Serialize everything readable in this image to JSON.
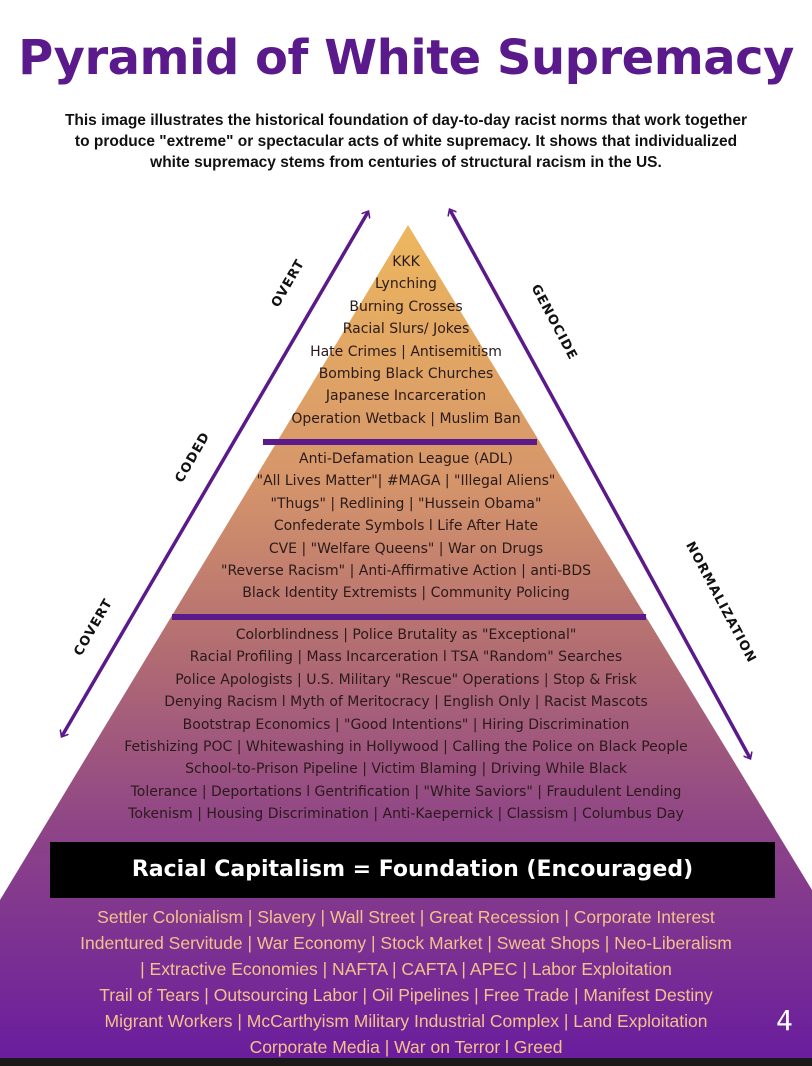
{
  "title": "Pyramid of White Supremacy",
  "subtitle": "This image illustrates the historical foundation of day-to-day racist norms that work together to produce \"extreme\" or spectacular acts of white supremacy. It shows that individualized white supremacy stems from centuries of structural racism in the US.",
  "arrows": {
    "left": [
      "OVERT",
      "CODED",
      "COVERT"
    ],
    "right": [
      "GENOCIDE",
      "NORMALIZATION"
    ]
  },
  "tiers": {
    "overt": [
      "KKK",
      "Lynching",
      "Burning Crosses",
      "Racial Slurs/ Jokes",
      "Hate Crimes | Antisemitism",
      "Bombing Black Churches",
      "Japanese Incarceration",
      "Operation Wetback | Muslim Ban"
    ],
    "coded": [
      "Anti-Defamation League (ADL)",
      "\"All Lives Matter\"| #MAGA | \"Illegal Aliens\"",
      "\"Thugs\" | Redlining | \"Hussein Obama\"",
      "Confederate Symbols l Life After Hate",
      "CVE | \"Welfare Queens\" | War on Drugs",
      "\"Reverse Racism\" | Anti-Affirmative Action | anti-BDS",
      "Black Identity Extremists | Community Policing"
    ],
    "covert": [
      "Colorblindness | Police Brutality as \"Exceptional\"",
      "Racial Profiling | Mass Incarceration l TSA \"Random\" Searches",
      "Police Apologists | U.S. Military \"Rescue\" Operations | Stop & Frisk",
      "Denying Racism l Myth of Meritocracy | English Only | Racist Mascots",
      "Bootstrap Economics | \"Good Intentions\" | Hiring Discrimination",
      "Fetishizing POC | Whitewashing in Hollywood | Calling the Police on Black People",
      "School-to-Prison Pipeline | Victim Blaming | Driving While Black",
      "Tolerance | Deportations l Gentrification | \"White Saviors\" | Fraudulent Lending",
      "Tokenism | Housing Discrimination | Anti-Kaepernick | Classism | Columbus Day"
    ]
  },
  "foundation": {
    "heading": "Racial Capitalism = Foundation (Encouraged)",
    "items": [
      "Settler Colonialism | Slavery | Wall Street | Great Recession | Corporate Interest",
      "Indentured Servitude | War Economy | Stock Market | Sweat Shops | Neo-Liberalism",
      "| Extractive Economies | NAFTA | CAFTA | APEC | Labor Exploitation",
      "Trail of Tears | Outsourcing Labor | Oil Pipelines | Free Trade | Manifest Destiny",
      "Migrant Workers | McCarthyism Military Industrial Complex | Land Exploitation",
      "Corporate Media | War on Terror l Greed"
    ]
  },
  "page_number": "4",
  "colors": {
    "title": "#5b1a8c",
    "apex": "#eab45f",
    "base": "#6a1c9c",
    "divider": "#5a1a8a",
    "foundation_text": "#f3c28a"
  }
}
